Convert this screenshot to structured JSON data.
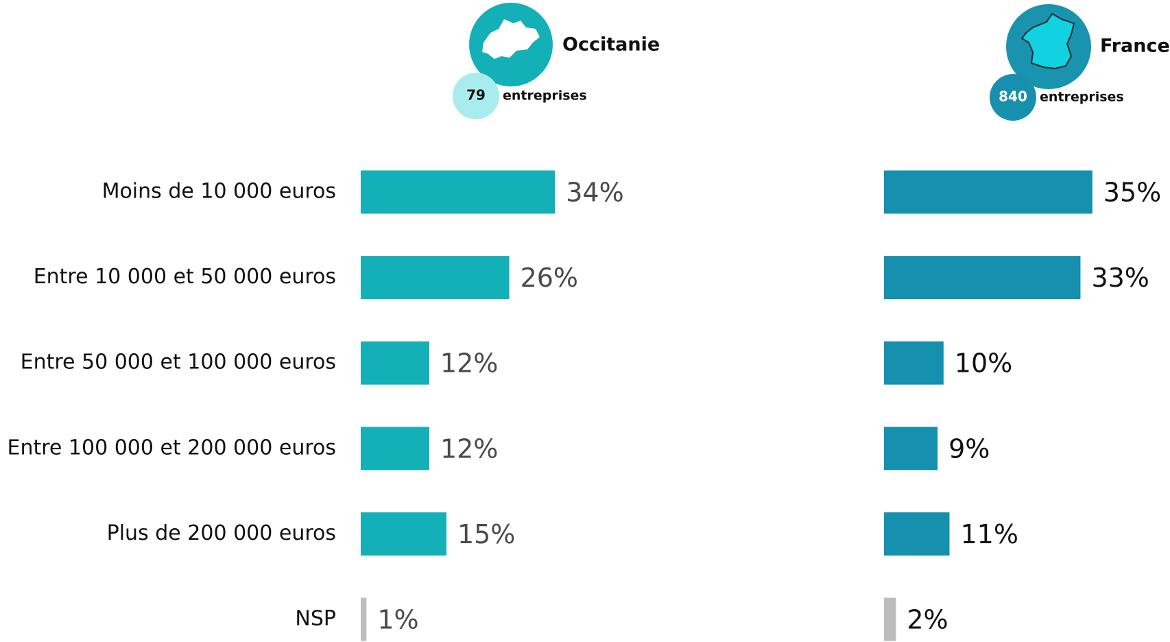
{
  "chart_data": [
    {
      "type": "bar",
      "orientation": "horizontal",
      "title": "Occitanie",
      "n": 79,
      "n_label": "entreprises",
      "categories": [
        "Moins de 10 000 euros",
        "Entre 10 000 et 50 000 euros",
        "Entre 50 000 et 100 000 euros",
        "Entre 100 000 et 200 000 euros",
        "Plus de 200 000 euros",
        "NSP"
      ],
      "values": [
        34,
        26,
        12,
        12,
        15,
        1
      ],
      "value_labels": [
        "34%",
        "26%",
        "12%",
        "12%",
        "15%",
        "1%"
      ],
      "colors": [
        "#13b0b8",
        "#13b0b8",
        "#13b0b8",
        "#13b0b8",
        "#13b0b8",
        "#bdbdbd"
      ]
    },
    {
      "type": "bar",
      "orientation": "horizontal",
      "title": "France",
      "n": 840,
      "n_label": "entreprises",
      "values": [
        35,
        33,
        10,
        9,
        11,
        2
      ],
      "value_labels": [
        "35%",
        "33%",
        "10%",
        "9%",
        "11%",
        "2%"
      ],
      "colors": [
        "#1590ae",
        "#1590ae",
        "#1590ae",
        "#1590ae",
        "#1590ae",
        "#bdbdbd"
      ]
    }
  ]
}
